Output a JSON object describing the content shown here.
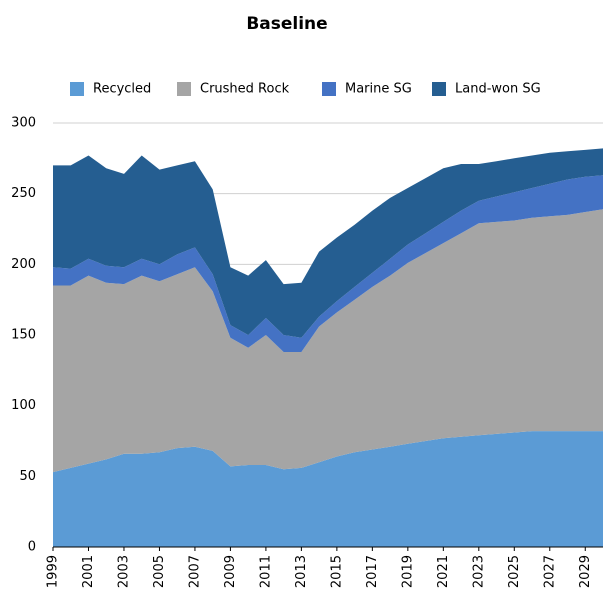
{
  "chart_data": {
    "type": "stacked_area",
    "title": "Baseline",
    "x": [
      1999,
      2000,
      2001,
      2002,
      2003,
      2004,
      2005,
      2006,
      2007,
      2008,
      2009,
      2010,
      2011,
      2012,
      2013,
      2014,
      2015,
      2016,
      2017,
      2018,
      2019,
      2020,
      2021,
      2022,
      2023,
      2024,
      2025,
      2026,
      2027,
      2028,
      2029,
      2030
    ],
    "series": [
      {
        "name": "Recycled",
        "color": "#5b9bd5",
        "values": [
          53,
          56,
          59,
          62,
          66,
          66,
          67,
          70,
          71,
          68,
          57,
          58,
          58,
          55,
          56,
          60,
          64,
          67,
          69,
          71,
          73,
          75,
          77,
          78,
          79,
          80,
          81,
          82,
          82,
          82,
          82,
          82
        ]
      },
      {
        "name": "Crushed Rock",
        "color": "#a5a5a5",
        "values": [
          132,
          129,
          133,
          125,
          120,
          126,
          121,
          123,
          127,
          113,
          91,
          83,
          92,
          83,
          82,
          96,
          102,
          108,
          115,
          121,
          128,
          133,
          138,
          144,
          150,
          150,
          150,
          151,
          152,
          153,
          155,
          157
        ]
      },
      {
        "name": "Marine SG",
        "color": "#4472c4",
        "values": [
          13,
          12,
          12,
          12,
          12,
          12,
          12,
          14,
          14,
          12,
          9,
          9,
          12,
          12,
          10,
          7,
          8,
          9,
          10,
          12,
          13,
          14,
          15,
          16,
          16,
          18,
          20,
          21,
          23,
          25,
          25,
          24
        ]
      },
      {
        "name": "Land-won SG",
        "color": "#255e91",
        "values": [
          72,
          73,
          73,
          69,
          66,
          73,
          67,
          63,
          61,
          60,
          41,
          42,
          41,
          36,
          39,
          46,
          45,
          44,
          44,
          43,
          40,
          39,
          38,
          33,
          26,
          25,
          24,
          23,
          22,
          20,
          19,
          19
        ]
      }
    ],
    "xlim": [
      1999,
      2030
    ],
    "xticks": [
      1999,
      2001,
      2003,
      2005,
      2007,
      2009,
      2011,
      2013,
      2015,
      2017,
      2019,
      2021,
      2023,
      2025,
      2027,
      2029
    ],
    "ylim": [
      0,
      300
    ],
    "yticks": [
      0,
      50,
      100,
      150,
      200,
      250,
      300
    ],
    "grid": true,
    "legend": "top"
  }
}
